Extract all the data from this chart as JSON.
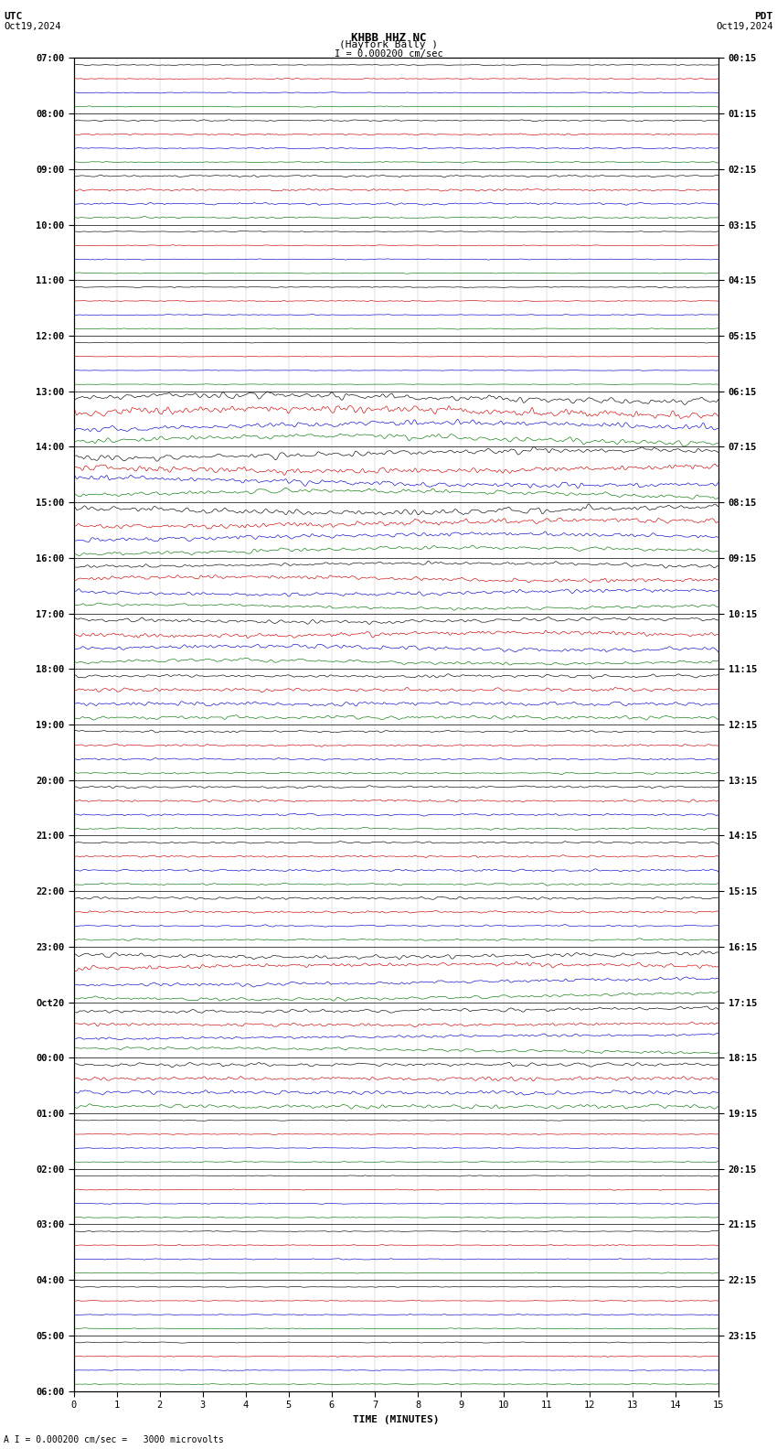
{
  "title_line1": "KHBB HHZ NC",
  "title_line2": "(Hayfork Bally )",
  "scale_label": "I = 0.000200 cm/sec",
  "bottom_label": "A I = 0.000200 cm/sec =   3000 microvolts",
  "utc_label": "UTC",
  "utc_date": "Oct19,2024",
  "pdt_label": "PDT",
  "pdt_date": "Oct19,2024",
  "xlabel": "TIME (MINUTES)",
  "bg_color": "white",
  "trace_colors": [
    "#000000",
    "#cc0000",
    "#0000cc",
    "#007700"
  ],
  "left_labels": [
    "07:00",
    "08:00",
    "09:00",
    "10:00",
    "11:00",
    "12:00",
    "13:00",
    "14:00",
    "15:00",
    "16:00",
    "17:00",
    "18:00",
    "19:00",
    "20:00",
    "21:00",
    "22:00",
    "23:00",
    "Oct20",
    "00:00",
    "01:00",
    "02:00",
    "03:00",
    "04:00",
    "05:00",
    "06:00"
  ],
  "right_labels": [
    "00:15",
    "01:15",
    "02:15",
    "03:15",
    "04:15",
    "05:15",
    "06:15",
    "07:15",
    "08:15",
    "09:15",
    "10:15",
    "11:15",
    "12:15",
    "13:15",
    "14:15",
    "15:15",
    "16:15",
    "17:15",
    "18:15",
    "19:15",
    "20:15",
    "21:15",
    "22:15",
    "23:15"
  ],
  "num_hours": 23,
  "traces_per_hour": 4,
  "minutes": 15,
  "seed": 12345,
  "grid_color": "#888888",
  "separator_color": "#000000"
}
